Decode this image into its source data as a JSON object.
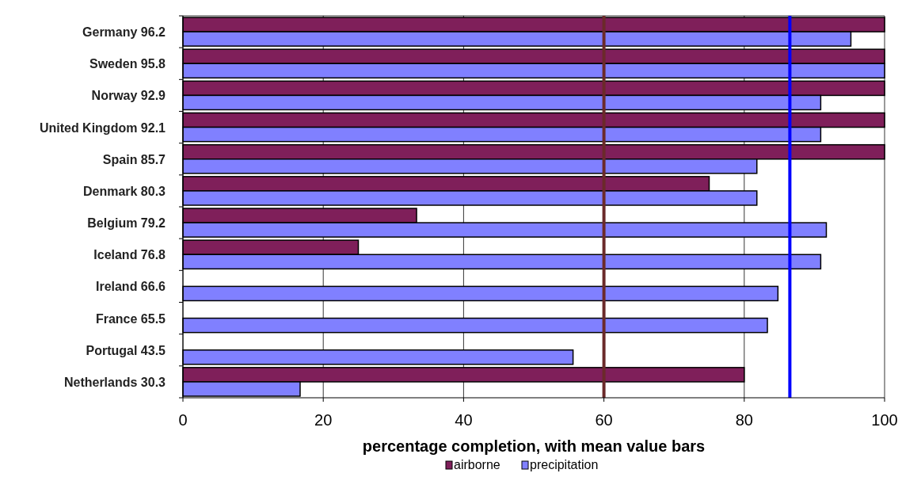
{
  "chart_data": {
    "type": "bar",
    "orientation": "horizontal",
    "xlabel": "percentage completion, with mean value bars",
    "categories": [
      "Germany 96.2",
      "Sweden 95.8",
      "Norway 92.9",
      "United Kingdom 92.1",
      "Spain 85.7",
      "Denmark 80.3",
      "Belgium 79.2",
      "Iceland 76.8",
      "Ireland 66.6",
      "France 65.5",
      "Portugal 43.5",
      "Netherlands 30.3"
    ],
    "series": [
      {
        "name": "airborne",
        "color": "#7f1f5a",
        "values": [
          100,
          100,
          100,
          100,
          100,
          75,
          33.3,
          25,
          null,
          null,
          null,
          80
        ]
      },
      {
        "name": "precipitation",
        "color": "#8080ff",
        "values": [
          95.2,
          100,
          90.9,
          90.9,
          81.8,
          81.8,
          91.7,
          90.9,
          84.8,
          83.3,
          55.6,
          16.7
        ]
      }
    ],
    "xlim": [
      0,
      100
    ],
    "xticks": [
      0,
      20,
      40,
      60,
      80,
      100
    ],
    "grid": "x",
    "legend": "bottom",
    "ref_lines": [
      {
        "axis": "x",
        "value": 60,
        "color": "#6b2a2a"
      },
      {
        "axis": "x",
        "value": 86.5,
        "color": "#0000ff"
      }
    ]
  }
}
